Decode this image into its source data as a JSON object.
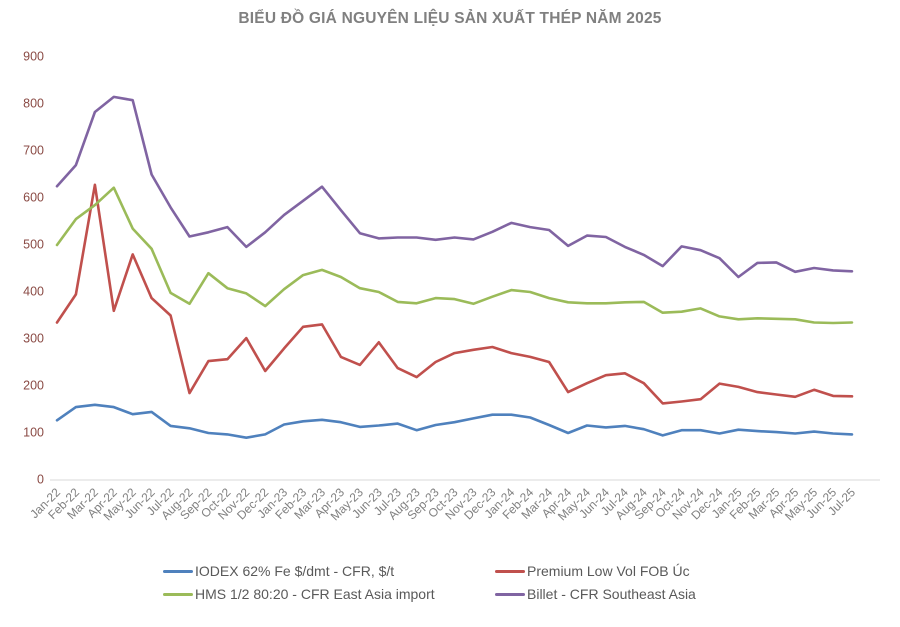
{
  "colors": {
    "title_text": "#808080",
    "y_axis_labels": "#8a4a44",
    "x_axis_labels": "#808080",
    "legend_text": "#595959",
    "axis_line": "#d9d9d9",
    "series_blue": "#4F81BD",
    "series_red": "#C0504D",
    "series_green": "#9BBB59",
    "series_purple": "#8064A2"
  },
  "chart_data": {
    "type": "line",
    "title": "BIỂU ĐỒ GIÁ NGUYÊN LIỆU SẢN XUẤT THÉP NĂM 2025",
    "xlabel": "",
    "ylabel": "",
    "ylim": [
      0,
      900
    ],
    "y_tick_step": 100,
    "grid": "off",
    "legend_position": "bottom",
    "x": [
      "Jan-22",
      "Feb-22",
      "Mar-22",
      "Apr-22",
      "May-22",
      "Jun-22",
      "Jul-22",
      "Aug-22",
      "Sep-22",
      "Oct-22",
      "Nov-22",
      "Dec-22",
      "Jan-23",
      "Feb-23",
      "Mar-23",
      "Apr-23",
      "May-23",
      "Jun-23",
      "Jul-23",
      "Aug-23",
      "Sep-23",
      "Oct-23",
      "Nov-23",
      "Dec-23",
      "Jan-24",
      "Feb-24",
      "Mar-24",
      "Apr-24",
      "May-24",
      "Jun-24",
      "Jul-24",
      "Aug-24",
      "Sep-24",
      "Oct-24",
      "Nov-24",
      "Dec-24",
      "Jan-25",
      "Feb-25",
      "Mar-25",
      "Apr-25",
      "May-25",
      "Jun-25",
      "Jul-25"
    ],
    "series": [
      {
        "name": "IODEX 62% Fe $/dmt - CFR, $/t",
        "color": "#4F81BD",
        "values": [
          127,
          155,
          160,
          155,
          140,
          145,
          115,
          110,
          100,
          97,
          90,
          97,
          118,
          125,
          128,
          123,
          113,
          116,
          120,
          106,
          117,
          123,
          131,
          139,
          139,
          133,
          117,
          100,
          116,
          112,
          115,
          108,
          95,
          106,
          106,
          99,
          107,
          104,
          102,
          99,
          103,
          99,
          97
        ]
      },
      {
        "name": "Premium Low Vol FOB Úc",
        "color": "#C0504D",
        "values": [
          335,
          395,
          628,
          360,
          480,
          387,
          350,
          185,
          253,
          257,
          302,
          232,
          280,
          326,
          331,
          262,
          245,
          293,
          238,
          219,
          251,
          270,
          277,
          283,
          270,
          262,
          251,
          187,
          206,
          223,
          227,
          206,
          163,
          167,
          172,
          205,
          198,
          187,
          182,
          177,
          192,
          179,
          178
        ]
      },
      {
        "name": "HMS 1/2 80:20 - CFR East Asia import",
        "color": "#9BBB59",
        "values": [
          500,
          555,
          585,
          622,
          535,
          492,
          398,
          375,
          440,
          408,
          397,
          370,
          406,
          436,
          447,
          432,
          408,
          400,
          379,
          376,
          387,
          385,
          375,
          390,
          404,
          400,
          387,
          378,
          376,
          376,
          378,
          379,
          356,
          358,
          365,
          348,
          342,
          344,
          343,
          342,
          335,
          334,
          335
        ]
      },
      {
        "name": "Billet - CFR Southeast Asia",
        "color": "#8064A2",
        "values": [
          625,
          670,
          783,
          815,
          808,
          650,
          580,
          518,
          527,
          538,
          496,
          527,
          564,
          594,
          624,
          574,
          525,
          514,
          516,
          516,
          511,
          516,
          512,
          528,
          547,
          538,
          532,
          498,
          520,
          517,
          496,
          479,
          455,
          497,
          489,
          472,
          432,
          462,
          463,
          443,
          451,
          446,
          444
        ]
      }
    ]
  }
}
